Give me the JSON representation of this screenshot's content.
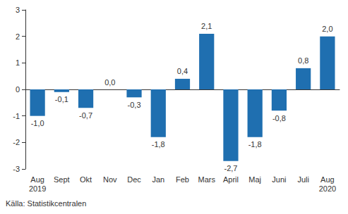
{
  "chart_data": {
    "type": "bar",
    "categories": [
      "Aug\n2019",
      "Sept",
      "Okt",
      "Nov",
      "Dec",
      "Jan",
      "Feb",
      "Mars",
      "April",
      "Maj",
      "Juni",
      "Juli",
      "Aug\n2020"
    ],
    "values": [
      -1.0,
      -0.1,
      -0.7,
      0.0,
      -0.3,
      -1.8,
      0.4,
      2.1,
      -2.7,
      -1.8,
      -0.8,
      0.8,
      2.0
    ],
    "value_labels": [
      "-1,0",
      "-0,1",
      "-0,7",
      "0,0",
      "-0,3",
      "-1,8",
      "0,4",
      "2,1",
      "-2,7",
      "-1,8",
      "-0,8",
      "0,8",
      "2,0"
    ],
    "color": "#1f6fb0",
    "ylim": [
      -3,
      3
    ],
    "yticks": [
      -3,
      -2,
      -1,
      0,
      1,
      2,
      3
    ],
    "grid": false,
    "data_labels": true,
    "annotations": [
      "Källa: Statistikcentralen"
    ]
  }
}
